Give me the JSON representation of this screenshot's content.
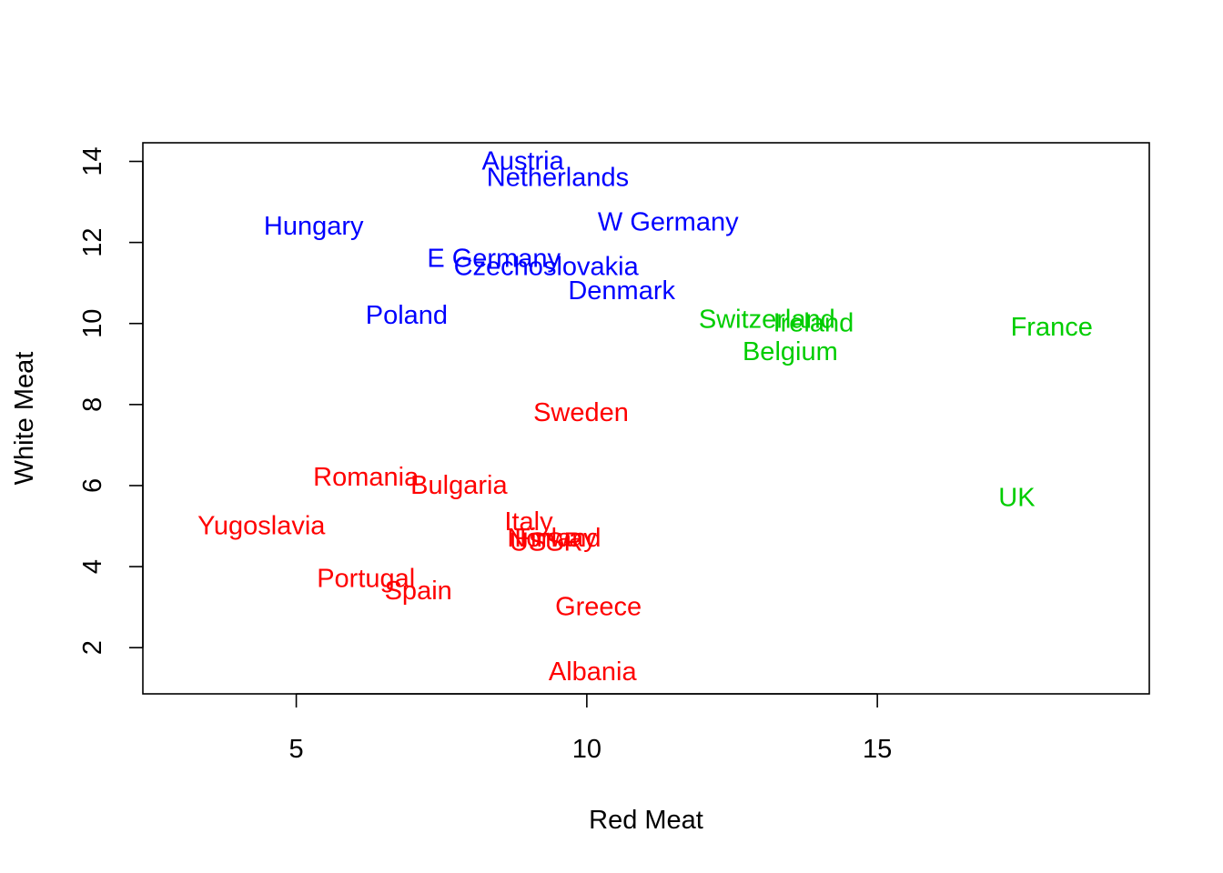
{
  "chart_data": {
    "type": "scatter",
    "title": "",
    "xlabel": "Red Meat",
    "ylabel": "White Meat",
    "xlim": [
      2.36,
      19.68
    ],
    "ylim": [
      0.86,
      14.46
    ],
    "xticks": [
      5,
      10,
      15
    ],
    "yticks": [
      2,
      4,
      6,
      8,
      10,
      12,
      14
    ],
    "grid": false,
    "legend": "none",
    "colors": {
      "cluster1": "#0000FF",
      "cluster2": "#00CD00",
      "cluster3": "#FF0000"
    },
    "points": [
      {
        "label": "Austria",
        "x": 8.9,
        "y": 14.0,
        "color": "#0000FF"
      },
      {
        "label": "Netherlands",
        "x": 9.5,
        "y": 13.6,
        "color": "#0000FF"
      },
      {
        "label": "Hungary",
        "x": 5.3,
        "y": 12.4,
        "color": "#0000FF"
      },
      {
        "label": "W Germany",
        "x": 11.4,
        "y": 12.5,
        "color": "#0000FF"
      },
      {
        "label": "E Germany",
        "x": 8.4,
        "y": 11.6,
        "color": "#0000FF"
      },
      {
        "label": "Czechoslovakia",
        "x": 9.3,
        "y": 11.4,
        "color": "#0000FF"
      },
      {
        "label": "Denmark",
        "x": 10.6,
        "y": 10.8,
        "color": "#0000FF"
      },
      {
        "label": "Poland",
        "x": 6.9,
        "y": 10.2,
        "color": "#0000FF"
      },
      {
        "label": "Switzerland",
        "x": 13.1,
        "y": 10.1,
        "color": "#00CD00"
      },
      {
        "label": "Ireland",
        "x": 13.9,
        "y": 10.0,
        "color": "#00CD00"
      },
      {
        "label": "France",
        "x": 18.0,
        "y": 9.9,
        "color": "#00CD00"
      },
      {
        "label": "Belgium",
        "x": 13.5,
        "y": 9.3,
        "color": "#00CD00"
      },
      {
        "label": "UK",
        "x": 17.4,
        "y": 5.7,
        "color": "#00CD00"
      },
      {
        "label": "Sweden",
        "x": 9.9,
        "y": 7.8,
        "color": "#FF0000"
      },
      {
        "label": "Romania",
        "x": 6.2,
        "y": 6.2,
        "color": "#FF0000"
      },
      {
        "label": "Bulgaria",
        "x": 7.8,
        "y": 6.0,
        "color": "#FF0000"
      },
      {
        "label": "Yugoslavia",
        "x": 4.4,
        "y": 5.0,
        "color": "#FF0000"
      },
      {
        "label": "Italy",
        "x": 9.0,
        "y": 5.1,
        "color": "#FF0000"
      },
      {
        "label": "Finland",
        "x": 9.5,
        "y": 4.7,
        "color": "#FF0000"
      },
      {
        "label": "Norway",
        "x": 9.4,
        "y": 4.7,
        "color": "#FF0000"
      },
      {
        "label": "USSR",
        "x": 9.3,
        "y": 4.6,
        "color": "#FF0000"
      },
      {
        "label": "Portugal",
        "x": 6.2,
        "y": 3.7,
        "color": "#FF0000"
      },
      {
        "label": "Spain",
        "x": 7.1,
        "y": 3.4,
        "color": "#FF0000"
      },
      {
        "label": "Greece",
        "x": 10.2,
        "y": 3.0,
        "color": "#FF0000"
      },
      {
        "label": "Albania",
        "x": 10.1,
        "y": 1.4,
        "color": "#FF0000"
      }
    ]
  }
}
